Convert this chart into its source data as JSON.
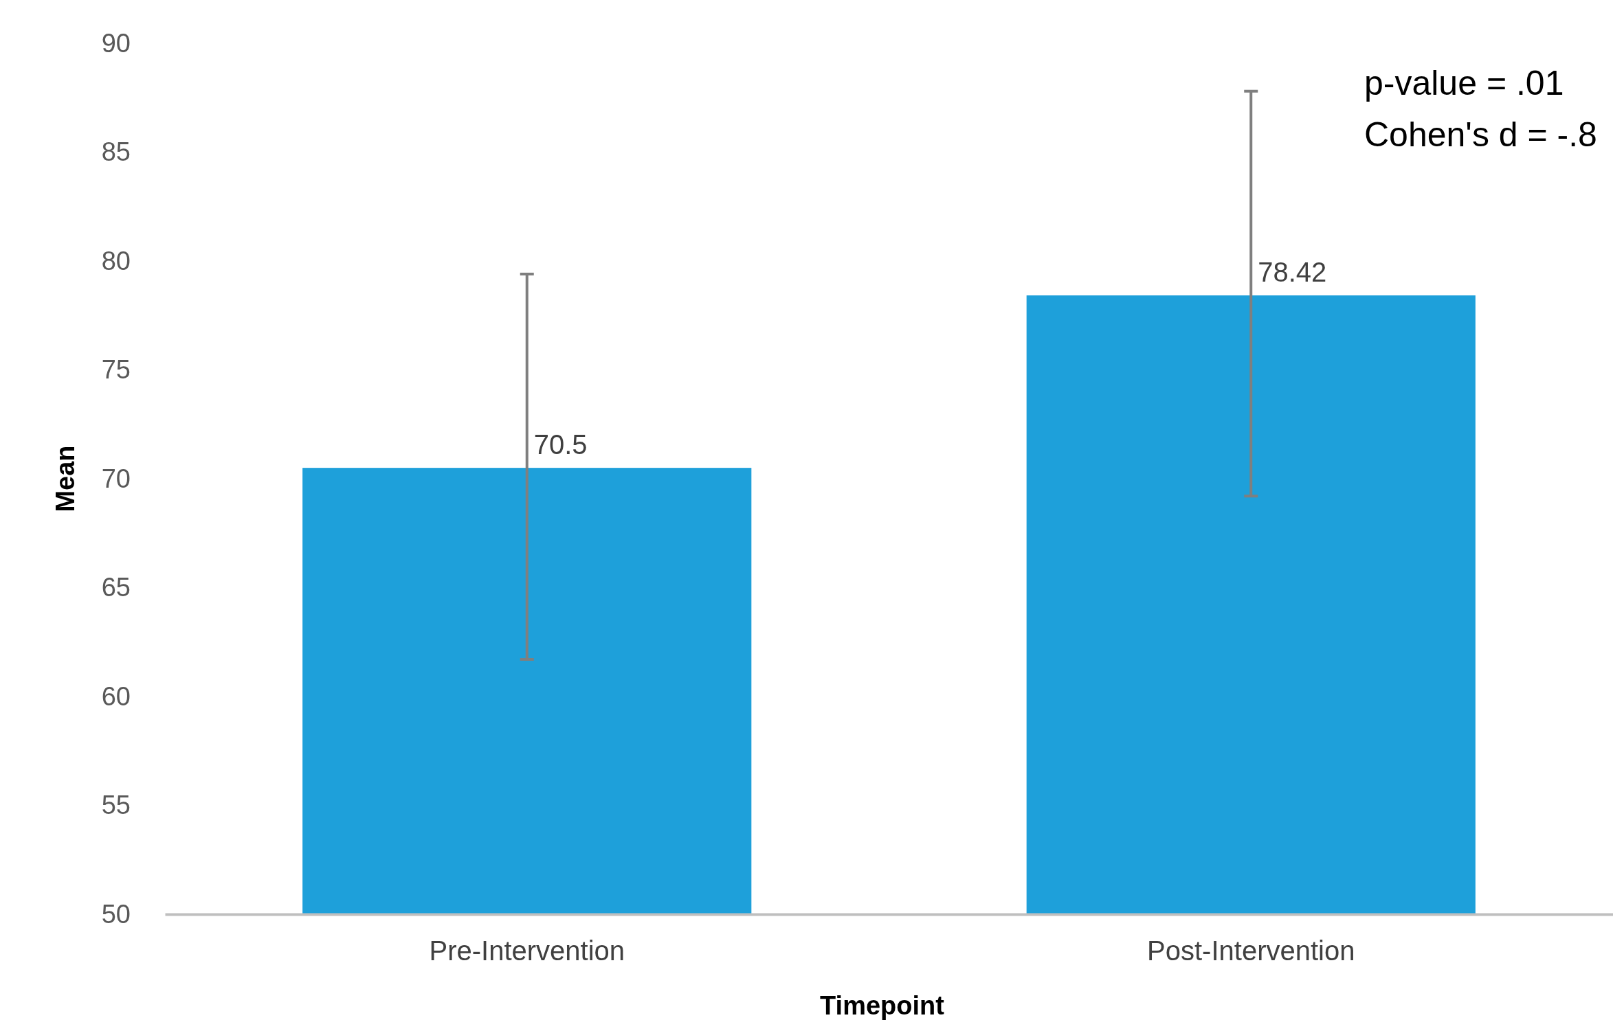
{
  "chart_data": {
    "type": "bar",
    "xlabel": "Timepoint",
    "ylabel": "Mean",
    "categories": [
      "Pre-Intervention",
      "Post-Intervention"
    ],
    "values": [
      70.5,
      78.42
    ],
    "errors": [
      [
        61.7,
        79.4
      ],
      [
        69.2,
        87.8
      ]
    ],
    "color": "#1ea0da",
    "ylim": [
      50,
      90
    ],
    "yticks": [
      50,
      55,
      60,
      65,
      70,
      75,
      80,
      85,
      90
    ],
    "grid": false,
    "data_labels": true,
    "annotations": [
      "p-value = .01",
      "Cohen's d = -.8"
    ]
  }
}
